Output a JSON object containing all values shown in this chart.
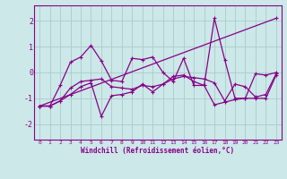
{
  "xlabel": "Windchill (Refroidissement éolien,°C)",
  "background_color": "#cce8e8",
  "grid_color": "#aacccc",
  "line_color": "#880088",
  "xlim": [
    -0.5,
    23.5
  ],
  "ylim": [
    -2.6,
    2.6
  ],
  "yticks": [
    -2,
    -1,
    0,
    1,
    2
  ],
  "xticks": [
    0,
    1,
    2,
    3,
    4,
    5,
    6,
    7,
    8,
    9,
    10,
    11,
    12,
    13,
    14,
    15,
    16,
    17,
    18,
    19,
    20,
    21,
    22,
    23
  ],
  "series1_x": [
    0,
    1,
    2,
    3,
    4,
    5,
    6,
    7,
    8,
    9,
    10,
    11,
    12,
    13,
    14,
    15,
    16,
    17,
    18,
    19,
    20,
    21,
    22,
    23
  ],
  "series1_y": [
    -1.3,
    -1.3,
    -1.1,
    -0.85,
    -0.55,
    -0.4,
    -1.7,
    -0.9,
    -0.85,
    -0.75,
    -0.45,
    -0.75,
    -0.45,
    -0.15,
    -0.1,
    -0.35,
    -0.5,
    -1.25,
    -1.15,
    -1.05,
    -1.0,
    -1.0,
    -1.0,
    -0.1
  ],
  "series2_x": [
    0,
    1,
    2,
    3,
    4,
    5,
    6,
    7,
    8,
    9,
    10,
    11,
    12,
    13,
    14,
    15,
    16,
    17,
    18,
    19,
    20,
    21,
    22,
    23
  ],
  "series2_y": [
    -1.3,
    -1.3,
    -1.1,
    -0.6,
    -0.35,
    -0.3,
    -0.25,
    -0.55,
    -0.6,
    -0.65,
    -0.5,
    -0.55,
    -0.45,
    -0.25,
    -0.15,
    -0.2,
    -0.25,
    -0.4,
    -1.1,
    -0.45,
    -0.55,
    -0.95,
    -0.85,
    -0.05
  ],
  "series3_x": [
    0,
    23
  ],
  "series3_y": [
    -1.3,
    2.1
  ],
  "series4_x": [
    0,
    1,
    2,
    3,
    4,
    5,
    6,
    7,
    8,
    9,
    10,
    11,
    12,
    13,
    14,
    15,
    16,
    17,
    18,
    19,
    20,
    21,
    22,
    23
  ],
  "series4_y": [
    -1.3,
    -1.3,
    -0.5,
    0.4,
    0.6,
    1.05,
    0.45,
    -0.3,
    -0.35,
    0.55,
    0.5,
    0.6,
    0.0,
    -0.35,
    0.55,
    -0.5,
    -0.5,
    2.1,
    0.5,
    -1.0,
    -1.0,
    -0.05,
    -0.1,
    0.0
  ]
}
